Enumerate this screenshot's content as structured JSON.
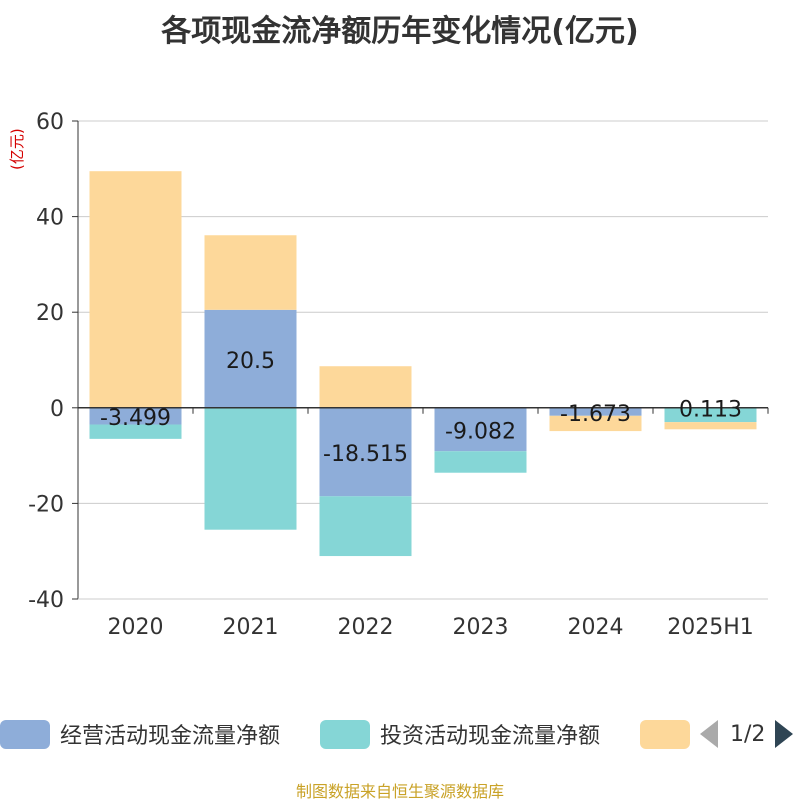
{
  "title": "各项现金流净额历年变化情况(亿元)",
  "unit_label": "(亿元)",
  "source": "制图数据来自恒生聚源数据库",
  "legend": {
    "page_text": "1/2",
    "items": [
      {
        "label": "经营活动现金流量净额",
        "color": "#8eadd9"
      },
      {
        "label": "投资活动现金流量净额",
        "color": "#85d6d6"
      },
      {
        "label": "",
        "color": "#fdd89a"
      }
    ]
  },
  "chart_data": {
    "type": "bar",
    "stacked": true,
    "categories": [
      "2020",
      "2021",
      "2022",
      "2023",
      "2024",
      "2025H1"
    ],
    "ylim": [
      -40,
      60
    ],
    "yticks": [
      -40,
      -20,
      0,
      20,
      40,
      60
    ],
    "grid": true,
    "series": [
      {
        "name": "经营活动现金流量净额",
        "color": "#8eadd9",
        "values": [
          -3.499,
          20.5,
          -18.515,
          -9.082,
          -1.673,
          0.113
        ],
        "labels": [
          "-3.499",
          "20.5",
          "-18.515",
          "-9.082",
          "-1.673",
          "0.113"
        ]
      },
      {
        "name": "投资活动现金流量净额",
        "color": "#85d6d6",
        "values": [
          -3.0,
          -25.5,
          -12.5,
          -4.5,
          0.0,
          -3.0
        ]
      },
      {
        "color": "#fdd89a",
        "values": [
          49.5,
          15.6,
          8.7,
          0.0,
          -3.2,
          -1.5
        ]
      }
    ]
  }
}
